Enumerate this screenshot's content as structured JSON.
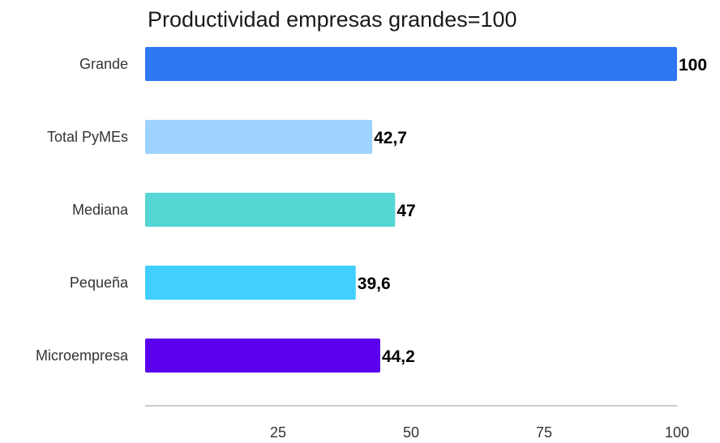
{
  "chart_data": {
    "type": "bar",
    "orientation": "horizontal",
    "title": "Productividad empresas grandes=100",
    "categories": [
      "Grande",
      "Total PyMEs",
      "Mediana",
      "Pequeña",
      "Microempresa"
    ],
    "values": [
      100,
      42.7,
      47,
      39.6,
      44.2
    ],
    "value_labels": [
      "100",
      "42,7",
      "47",
      "39,6",
      "44,2"
    ],
    "colors": [
      "#2f78f4",
      "#9ed3ff",
      "#53d6d4",
      "#40cfff",
      "#5b00ee"
    ],
    "xlim": [
      0,
      100
    ],
    "x_ticks": [
      25,
      50,
      75,
      100
    ],
    "x_tick_labels": [
      "25",
      "50",
      "75",
      "100"
    ],
    "grid": false,
    "legend": "none"
  }
}
